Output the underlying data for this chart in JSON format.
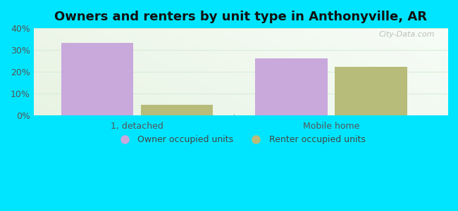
{
  "title": "Owners and renters by unit type in Anthonyville, AR",
  "categories": [
    "1, detached",
    "Mobile home"
  ],
  "owner_values": [
    33.3,
    26.3
  ],
  "renter_values": [
    5.0,
    22.2
  ],
  "owner_color": "#c9a8dc",
  "renter_color": "#b8bc7a",
  "ylim": [
    0,
    40
  ],
  "yticks": [
    0,
    10,
    20,
    30,
    40
  ],
  "yticklabels": [
    "0%",
    "10%",
    "20%",
    "30%",
    "40%"
  ],
  "background_outer": "#00e5ff",
  "background_inner": "#e8f5e2",
  "grid_color": "#d8edd8",
  "legend_owner": "Owner occupied units",
  "legend_renter": "Renter occupied units",
  "watermark": "City-Data.com",
  "bar_width": 0.28,
  "title_fontsize": 13
}
